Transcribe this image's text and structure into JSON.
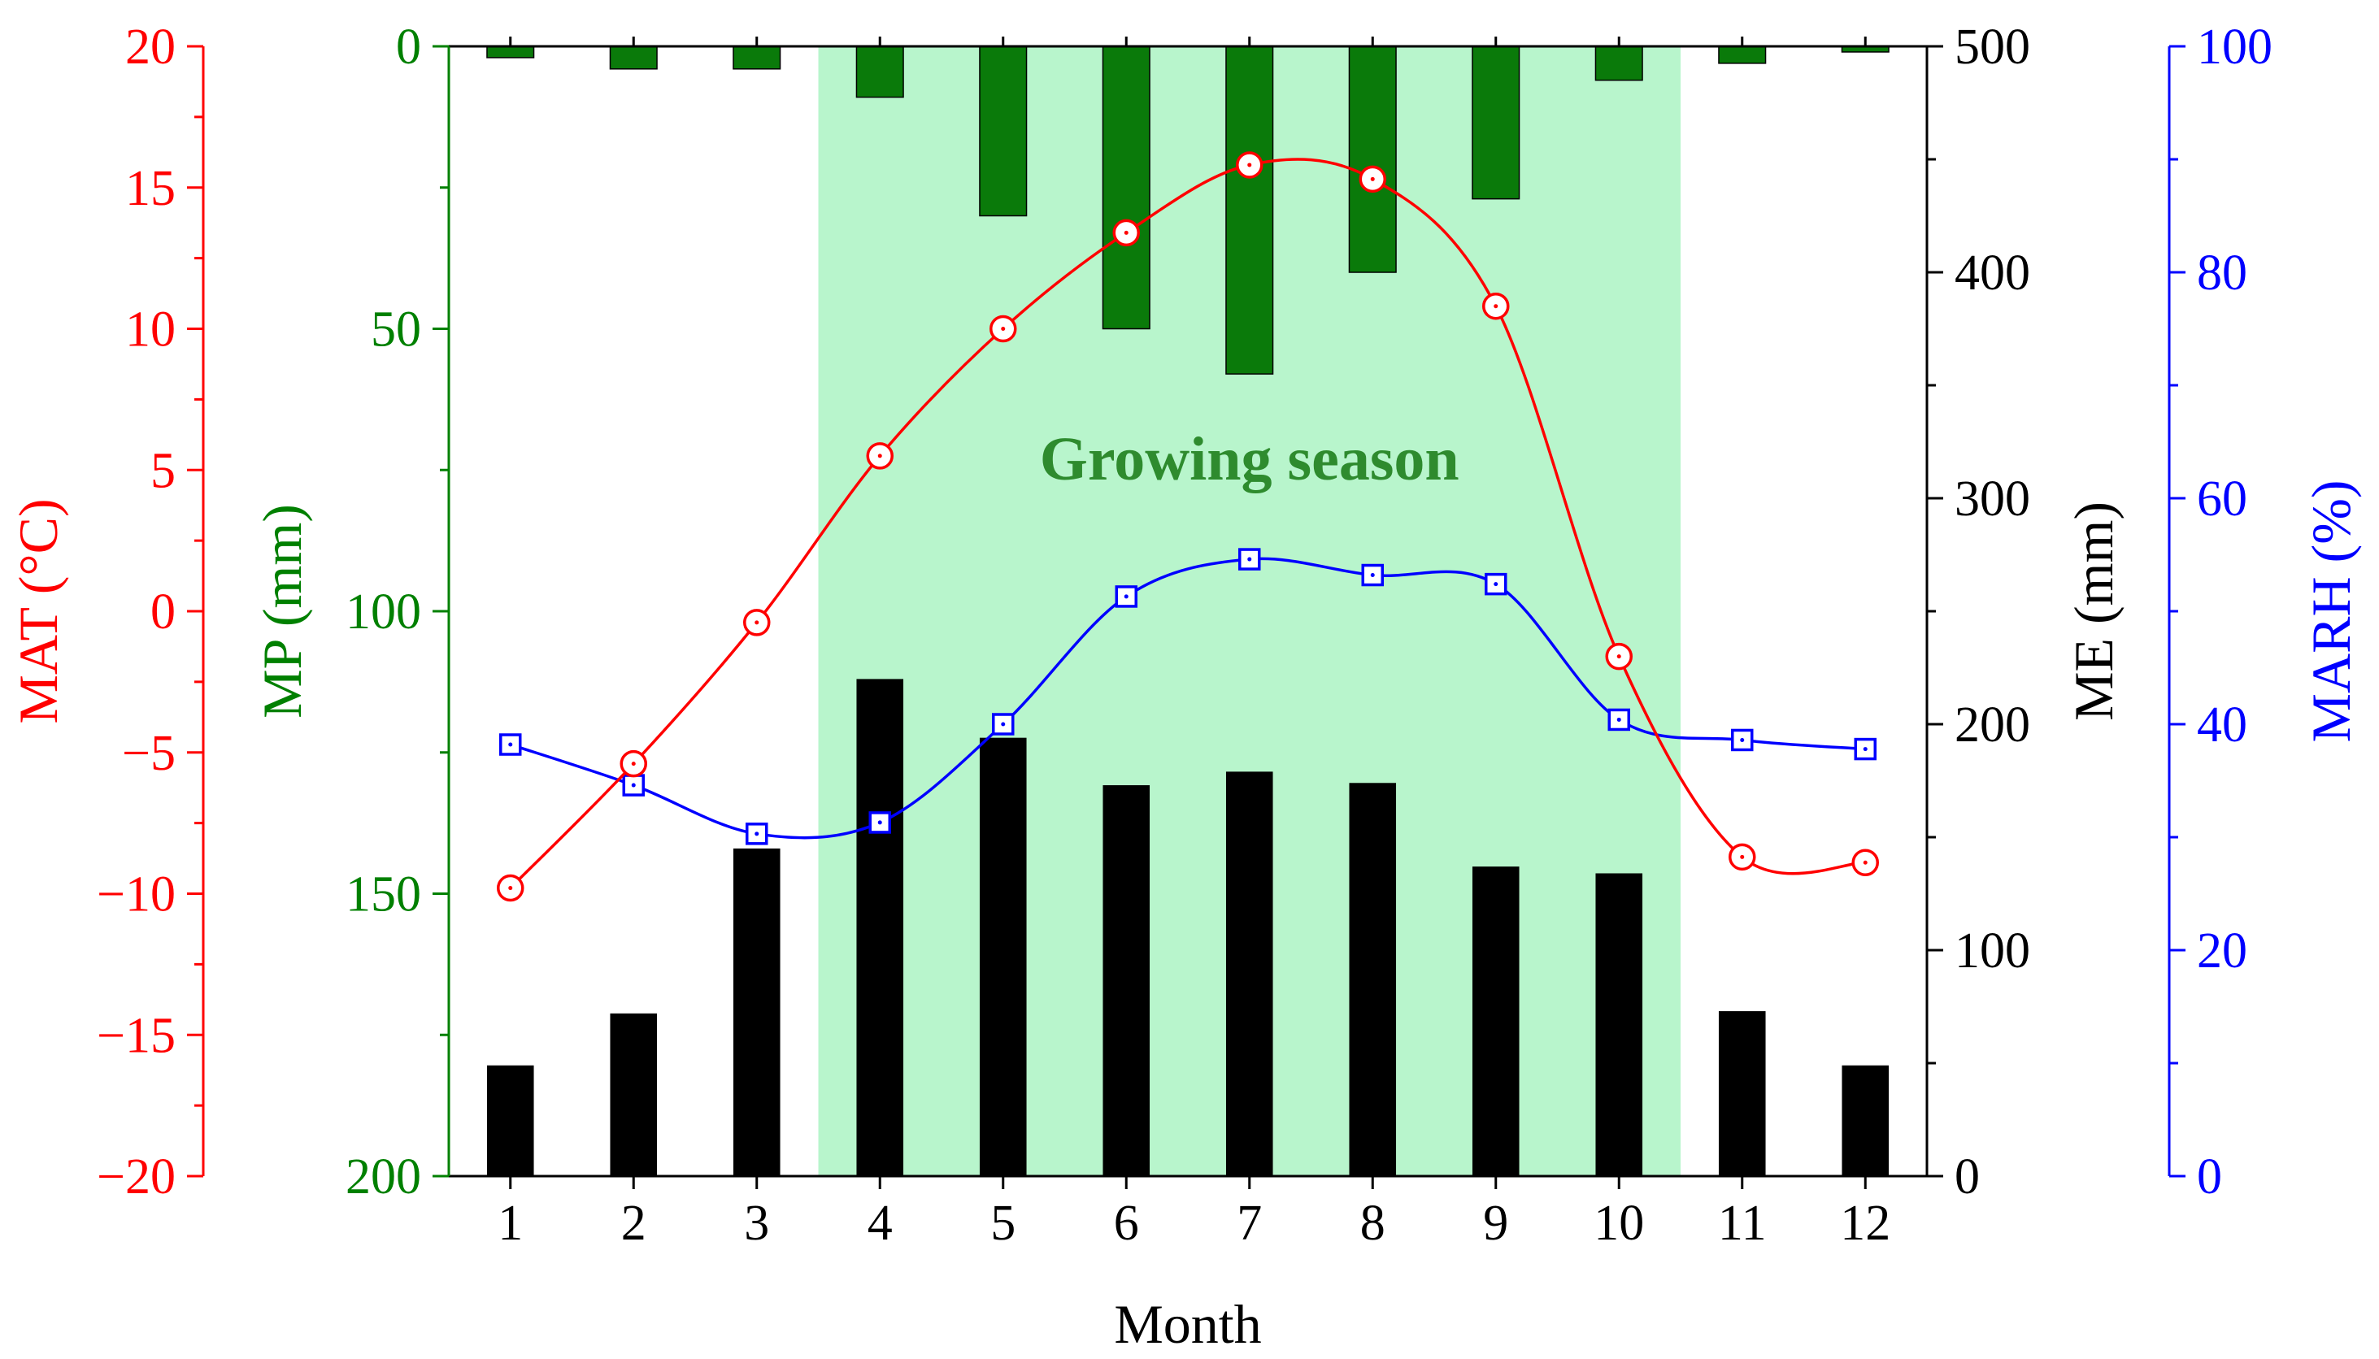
{
  "colors": {
    "mat": "#ff0000",
    "mp": "#008000",
    "mp_bar": "#0a7a0a",
    "me": "#000000",
    "marh": "#0000ff",
    "season_fill": "#b8f5cc",
    "season_text": "#2e8b2e"
  },
  "chart_data": {
    "type": "bar",
    "xlabel": "Month",
    "categories": [
      "1",
      "2",
      "3",
      "4",
      "5",
      "6",
      "7",
      "8",
      "9",
      "10",
      "11",
      "12"
    ],
    "growing_season": {
      "label": "Growing season",
      "from_month": 4,
      "to_month": 10
    },
    "series": [
      {
        "name": "MAT",
        "axis_title": "MAT (°C)",
        "type": "line",
        "marker": "circle",
        "ylim": [
          -20,
          20
        ],
        "ticks": [
          -20,
          -15,
          -10,
          -5,
          0,
          5,
          10,
          15,
          20
        ],
        "tick_labels": [
          "−20",
          "−15",
          "−10",
          "−5",
          "0",
          "5",
          "10",
          "15",
          "20"
        ],
        "values": [
          -9.8,
          -5.4,
          -0.4,
          5.5,
          10.0,
          13.4,
          15.8,
          15.3,
          10.8,
          -1.6,
          -8.7,
          -8.9
        ]
      },
      {
        "name": "MP",
        "axis_title": "MP (mm)",
        "type": "bar",
        "inverted": true,
        "ylim": [
          0,
          200
        ],
        "ticks": [
          0,
          50,
          100,
          150,
          200
        ],
        "tick_labels": [
          "0",
          "50",
          "100",
          "150",
          "200"
        ],
        "values": [
          2,
          4,
          4,
          9,
          30,
          50,
          58,
          40,
          27,
          6,
          3,
          1
        ]
      },
      {
        "name": "ME",
        "axis_title": "ME (mm)",
        "type": "bar",
        "ylim": [
          0,
          500
        ],
        "ticks": [
          0,
          100,
          200,
          300,
          400,
          500
        ],
        "tick_labels": [
          "0",
          "100",
          "200",
          "300",
          "400",
          "500"
        ],
        "values": [
          49,
          72,
          145,
          220,
          194,
          173,
          179,
          174,
          137,
          134,
          73,
          49
        ]
      },
      {
        "name": "MARH",
        "axis_title": "MARH (%)",
        "type": "line",
        "marker": "square",
        "ylim": [
          0,
          100
        ],
        "ticks": [
          0,
          20,
          40,
          60,
          80,
          100
        ],
        "tick_labels": [
          "0",
          "20",
          "40",
          "60",
          "80",
          "100"
        ],
        "values": [
          38.2,
          34.6,
          30.3,
          31.3,
          40.0,
          51.3,
          54.6,
          53.2,
          52.4,
          40.4,
          38.6,
          37.8
        ]
      }
    ]
  }
}
